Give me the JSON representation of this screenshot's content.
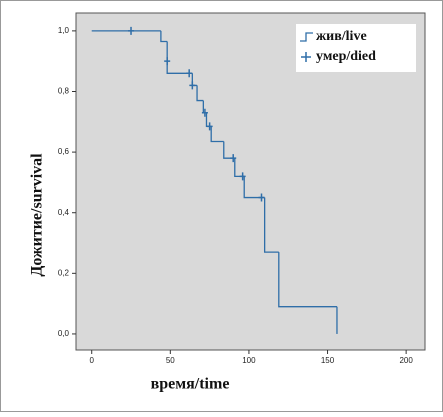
{
  "chart_data": {
    "type": "kaplan-meier",
    "y_label": "Дожитие/survival",
    "x_label": "время/time",
    "xlim": [
      -10,
      212
    ],
    "ylim": [
      -0.053,
      1.059
    ],
    "xticks": [
      0,
      50,
      100,
      150,
      200
    ],
    "yticks": [
      {
        "value": 0,
        "label": "0,0"
      },
      {
        "value": 0.2,
        "label": "0,2"
      },
      {
        "value": 0.4,
        "label": "0,4"
      },
      {
        "value": 0.6,
        "label": "0,6"
      },
      {
        "value": 0.8,
        "label": "0,8"
      },
      {
        "value": 1,
        "label": "1,0"
      }
    ],
    "series": [
      {
        "name": "жив/live",
        "color": "#2f6ea8",
        "style": "step",
        "x": [
          0,
          44,
          48,
          64,
          67,
          71,
          73,
          76,
          84,
          91,
          97,
          110,
          119,
          156
        ],
        "values": [
          1.0,
          0.965,
          0.86,
          0.82,
          0.77,
          0.73,
          0.685,
          0.635,
          0.58,
          0.52,
          0.45,
          0.27,
          0.09,
          0.0
        ]
      },
      {
        "name": "умер/died",
        "color": "#2f6ea8",
        "style": "censor",
        "x": [
          25,
          48,
          62,
          64,
          72,
          75,
          90,
          96,
          108
        ],
        "values": [
          1.0,
          0.9,
          0.86,
          0.82,
          0.73,
          0.685,
          0.58,
          0.52,
          0.45
        ]
      }
    ]
  }
}
